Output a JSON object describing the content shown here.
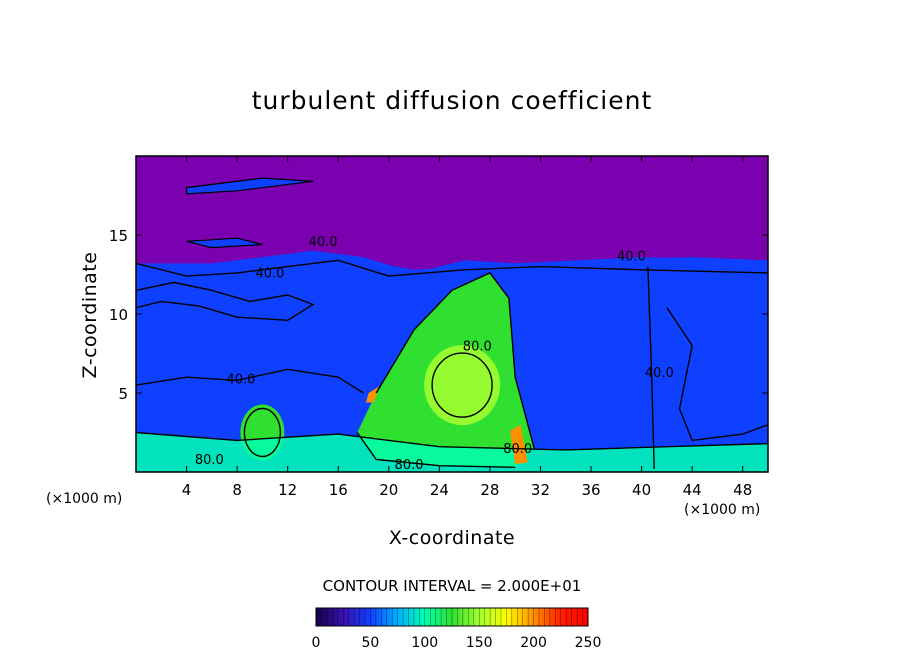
{
  "chart_data": {
    "type": "heatmap",
    "title": "turbulent diffusion coefficient",
    "xlabel": "X-coordinate",
    "ylabel": "Z-coordinate",
    "x_unit": "(×1000 m)",
    "x_unit_right": "(×1000 m)",
    "xlim": [
      0,
      50
    ],
    "ylim": [
      0,
      20
    ],
    "x_ticks": [
      "4",
      "8",
      "12",
      "16",
      "20",
      "24",
      "28",
      "32",
      "36",
      "40",
      "44",
      "48"
    ],
    "y_ticks": [
      "5",
      "10",
      "15"
    ],
    "contour_interval_text": "CONTOUR INTERVAL = 2.000E+01",
    "contour_interval": 20,
    "colorbar": {
      "min": 0,
      "max": 250,
      "ticks": [
        "0",
        "50",
        "100",
        "150",
        "200",
        "250"
      ],
      "colors": [
        "#16004a",
        "#3a10b0",
        "#1040ff",
        "#00b0ff",
        "#00ffb0",
        "#30e030",
        "#a0ff30",
        "#ffff00",
        "#ff9000",
        "#ff2000",
        "#ff0000"
      ]
    },
    "contour_labels": [
      {
        "text": "40.0",
        "x": 14.8,
        "z": 14.3
      },
      {
        "text": "40.0",
        "x": 10.6,
        "z": 12.3
      },
      {
        "text": "40.0",
        "x": 8.3,
        "z": 5.6
      },
      {
        "text": "40.0",
        "x": 39.2,
        "z": 13.4
      },
      {
        "text": "40.0",
        "x": 41.4,
        "z": 6.0
      },
      {
        "text": "80.0",
        "x": 5.8,
        "z": 0.5
      },
      {
        "text": "80.0",
        "x": 21.6,
        "z": 0.2
      },
      {
        "text": "80.0",
        "x": 27.0,
        "z": 7.7
      },
      {
        "text": "80.0",
        "x": 30.2,
        "z": 1.2
      }
    ],
    "regions": [
      {
        "kind": "background",
        "value": 40
      },
      {
        "kind": "stratosphere",
        "value": 0
      },
      {
        "kind": "tropopause-layer",
        "value": 55
      },
      {
        "kind": "left-eddy",
        "value": 60
      },
      {
        "kind": "central-updraft",
        "value": 130
      },
      {
        "kind": "vortex-core",
        "value": 140
      },
      {
        "kind": "right-cell",
        "value": 45
      },
      {
        "kind": "surface-layer",
        "value": 95
      },
      {
        "kind": "hotspot",
        "value": 190
      }
    ]
  }
}
